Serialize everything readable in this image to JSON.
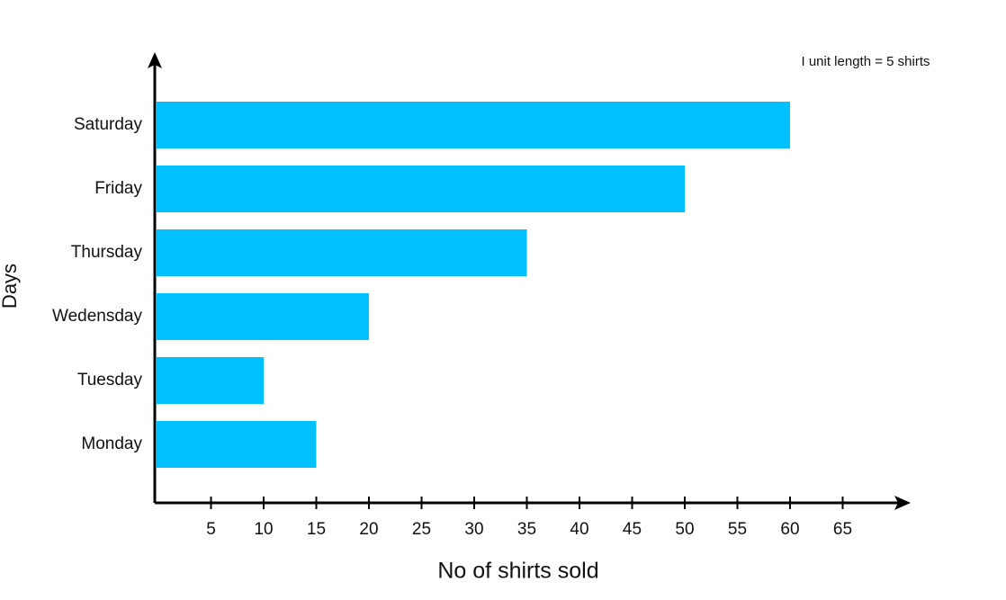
{
  "chart_data": {
    "type": "hbar",
    "annotation": "I unit length = 5 shirts",
    "xlabel": "No of shirts sold",
    "ylabel": "Days",
    "categories": [
      "Monday",
      "Tuesday",
      "Wedensday",
      "Thursday",
      "Friday",
      "Saturday"
    ],
    "values": [
      15,
      10,
      20,
      35,
      50,
      60
    ],
    "color": "#00c0ff",
    "xlim": [
      0,
      70
    ],
    "xticks": [
      5,
      10,
      15,
      20,
      25,
      30,
      35,
      40,
      45,
      50,
      55,
      60,
      65
    ],
    "grid": false
  }
}
